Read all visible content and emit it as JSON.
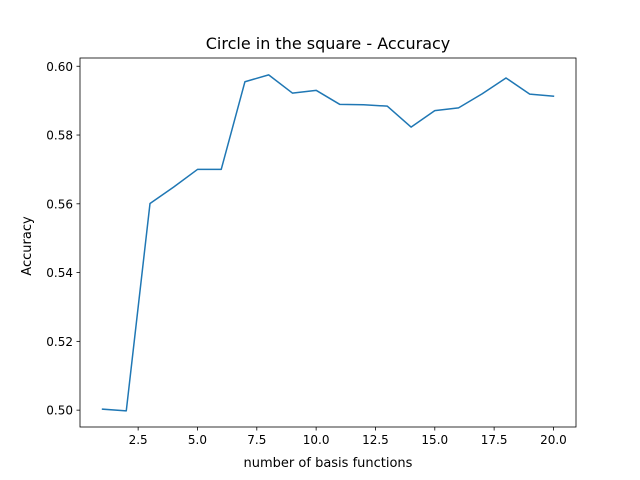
{
  "chart_data": {
    "type": "line",
    "title": "Circle in the square - Accuracy",
    "xlabel": "number of basis functions",
    "ylabel": "Accuracy",
    "xlim": [
      0.05,
      20.95
    ],
    "ylim": [
      0.4951,
      0.6024
    ],
    "xticks": [
      2.5,
      5.0,
      7.5,
      10.0,
      12.5,
      15.0,
      17.5,
      20.0
    ],
    "xtick_labels": [
      "2.5",
      "5.0",
      "7.5",
      "10.0",
      "12.5",
      "15.0",
      "17.5",
      "20.0"
    ],
    "yticks": [
      0.5,
      0.52,
      0.54,
      0.56,
      0.58,
      0.6
    ],
    "ytick_labels": [
      "0.50",
      "0.52",
      "0.54",
      "0.56",
      "0.58",
      "0.60"
    ],
    "grid": false,
    "series": [
      {
        "color": "#1f77b4",
        "x": [
          1,
          2,
          3,
          4,
          5,
          6,
          7,
          8,
          9,
          10,
          11,
          12,
          13,
          14,
          15,
          16,
          17,
          18,
          19,
          20
        ],
        "y": [
          0.5003,
          0.4998,
          0.5601,
          0.5649,
          0.57,
          0.57,
          0.5955,
          0.5975,
          0.5922,
          0.593,
          0.5889,
          0.5888,
          0.5884,
          0.5823,
          0.5871,
          0.5879,
          0.592,
          0.5966,
          0.5919,
          0.5913
        ]
      }
    ]
  }
}
